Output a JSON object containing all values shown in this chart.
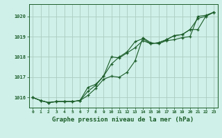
{
  "background_color": "#cff0e8",
  "plot_bg_color": "#cff0e8",
  "grid_color": "#aaccc0",
  "line_color": "#1a5c28",
  "marker_color": "#1a5c28",
  "title": "Graphe pression niveau de la mer (hPa)",
  "title_fontsize": 6.5,
  "ylim": [
    1015.5,
    1020.6
  ],
  "xlim": [
    -0.5,
    23.5
  ],
  "yticks": [
    1016,
    1017,
    1018,
    1019,
    1020
  ],
  "xticks": [
    0,
    1,
    2,
    3,
    4,
    5,
    6,
    7,
    8,
    9,
    10,
    11,
    12,
    13,
    14,
    15,
    16,
    17,
    18,
    19,
    20,
    21,
    22,
    23
  ],
  "series1": [
    1016.0,
    1015.85,
    1015.75,
    1015.8,
    1015.8,
    1015.8,
    1015.85,
    1016.1,
    1016.45,
    1016.9,
    1017.05,
    1017.0,
    1017.25,
    1017.8,
    1018.95,
    1018.7,
    1018.65,
    1018.8,
    1018.85,
    1018.95,
    1019.0,
    1020.0,
    1020.05,
    1020.2
  ],
  "series2": [
    1016.0,
    1015.85,
    1015.75,
    1015.8,
    1015.8,
    1015.8,
    1015.85,
    1016.3,
    1016.6,
    1017.05,
    1018.0,
    1017.95,
    1018.2,
    1018.45,
    1018.8,
    1018.65,
    1018.7,
    1018.85,
    1019.05,
    1019.1,
    1019.35,
    1019.9,
    1020.0,
    1020.2
  ],
  "series3": [
    1016.0,
    1015.85,
    1015.75,
    1015.8,
    1015.8,
    1015.8,
    1015.85,
    1016.5,
    1016.65,
    1017.05,
    1017.65,
    1018.0,
    1018.25,
    1018.75,
    1018.9,
    1018.65,
    1018.7,
    1018.85,
    1019.05,
    1019.1,
    1019.35,
    1019.35,
    1020.0,
    1020.2
  ]
}
